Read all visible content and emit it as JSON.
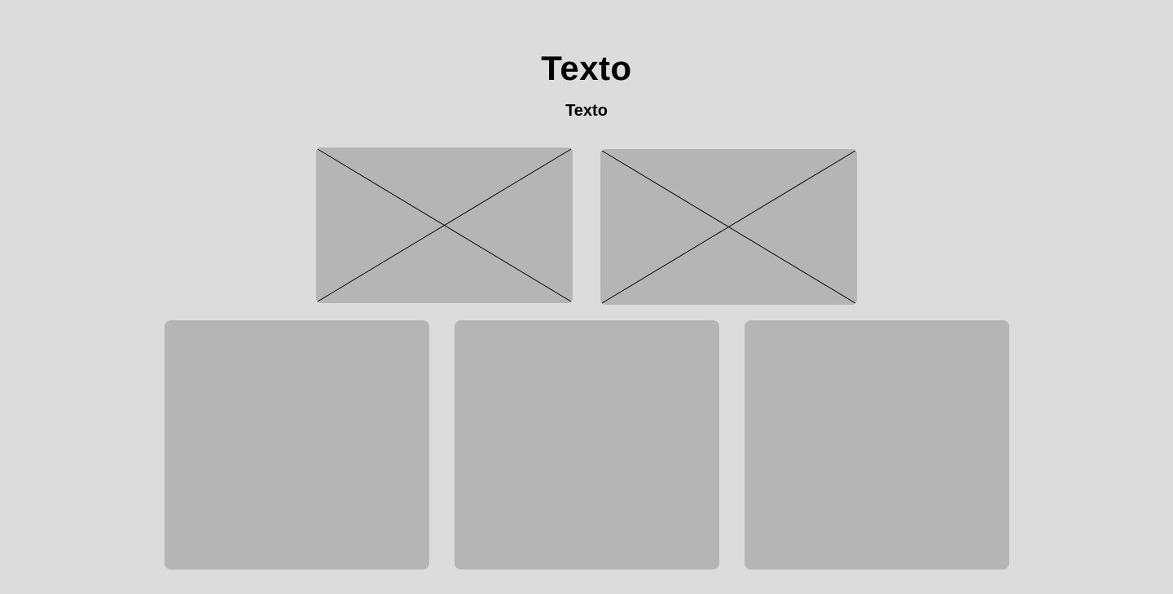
{
  "header": {
    "title": "Texto",
    "subtitle": "Texto"
  },
  "images": [
    {
      "icon": "image-placeholder-icon"
    },
    {
      "icon": "image-placeholder-icon"
    }
  ],
  "cards": [
    {},
    {},
    {}
  ],
  "colors": {
    "background": "#dcdcdc",
    "placeholder": "#b5b5b5",
    "text": "#000000"
  }
}
